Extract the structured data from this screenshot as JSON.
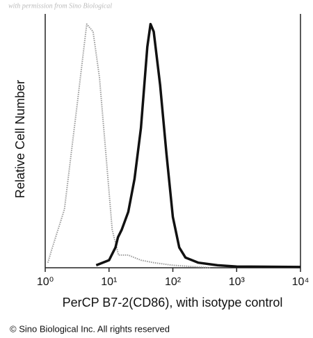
{
  "chart_data": {
    "type": "line",
    "watermark": "with permission from Sino Biological",
    "xlabel": "PerCP B7-2(CD86), with isotype control",
    "ylabel": "Relative Cell Number",
    "footer": "© Sino Biological Inc. All rights reserved",
    "xscale": "log",
    "xlim": [
      1,
      10000
    ],
    "ylim": [
      0,
      100
    ],
    "xticks": [
      {
        "value": 1,
        "label": "10⁰"
      },
      {
        "value": 10,
        "label": "10¹"
      },
      {
        "value": 100,
        "label": "10²"
      },
      {
        "value": 1000,
        "label": "10³"
      },
      {
        "value": 10000,
        "label": "10⁴"
      }
    ],
    "series": [
      {
        "color": "#9a9a9a",
        "style": "dotted",
        "x": [
          1.1,
          1.26,
          2.0,
          3.16,
          4.47,
          5.62,
          7.08,
          8.91,
          11.2,
          14.1,
          20,
          31.6,
          50.1,
          100,
          200,
          398
        ],
        "values": [
          2,
          7,
          23,
          64,
          96,
          93,
          75,
          45,
          15,
          5,
          5,
          3,
          2,
          1,
          0.5,
          0
        ]
      },
      {
        "color": "#111111",
        "style": "solid",
        "x": [
          6.3,
          10,
          12.6,
          13.8,
          15.8,
          20,
          25.1,
          31.6,
          39.8,
          44.7,
          50.1,
          63.1,
          79.4,
          100,
          126,
          158,
          251,
          501,
          1000,
          10000
        ],
        "values": [
          1,
          3,
          8,
          12,
          15,
          22,
          35,
          55,
          87,
          96,
          93,
          72,
          45,
          20,
          8,
          4,
          2,
          1,
          0.5,
          0.3
        ]
      }
    ]
  }
}
